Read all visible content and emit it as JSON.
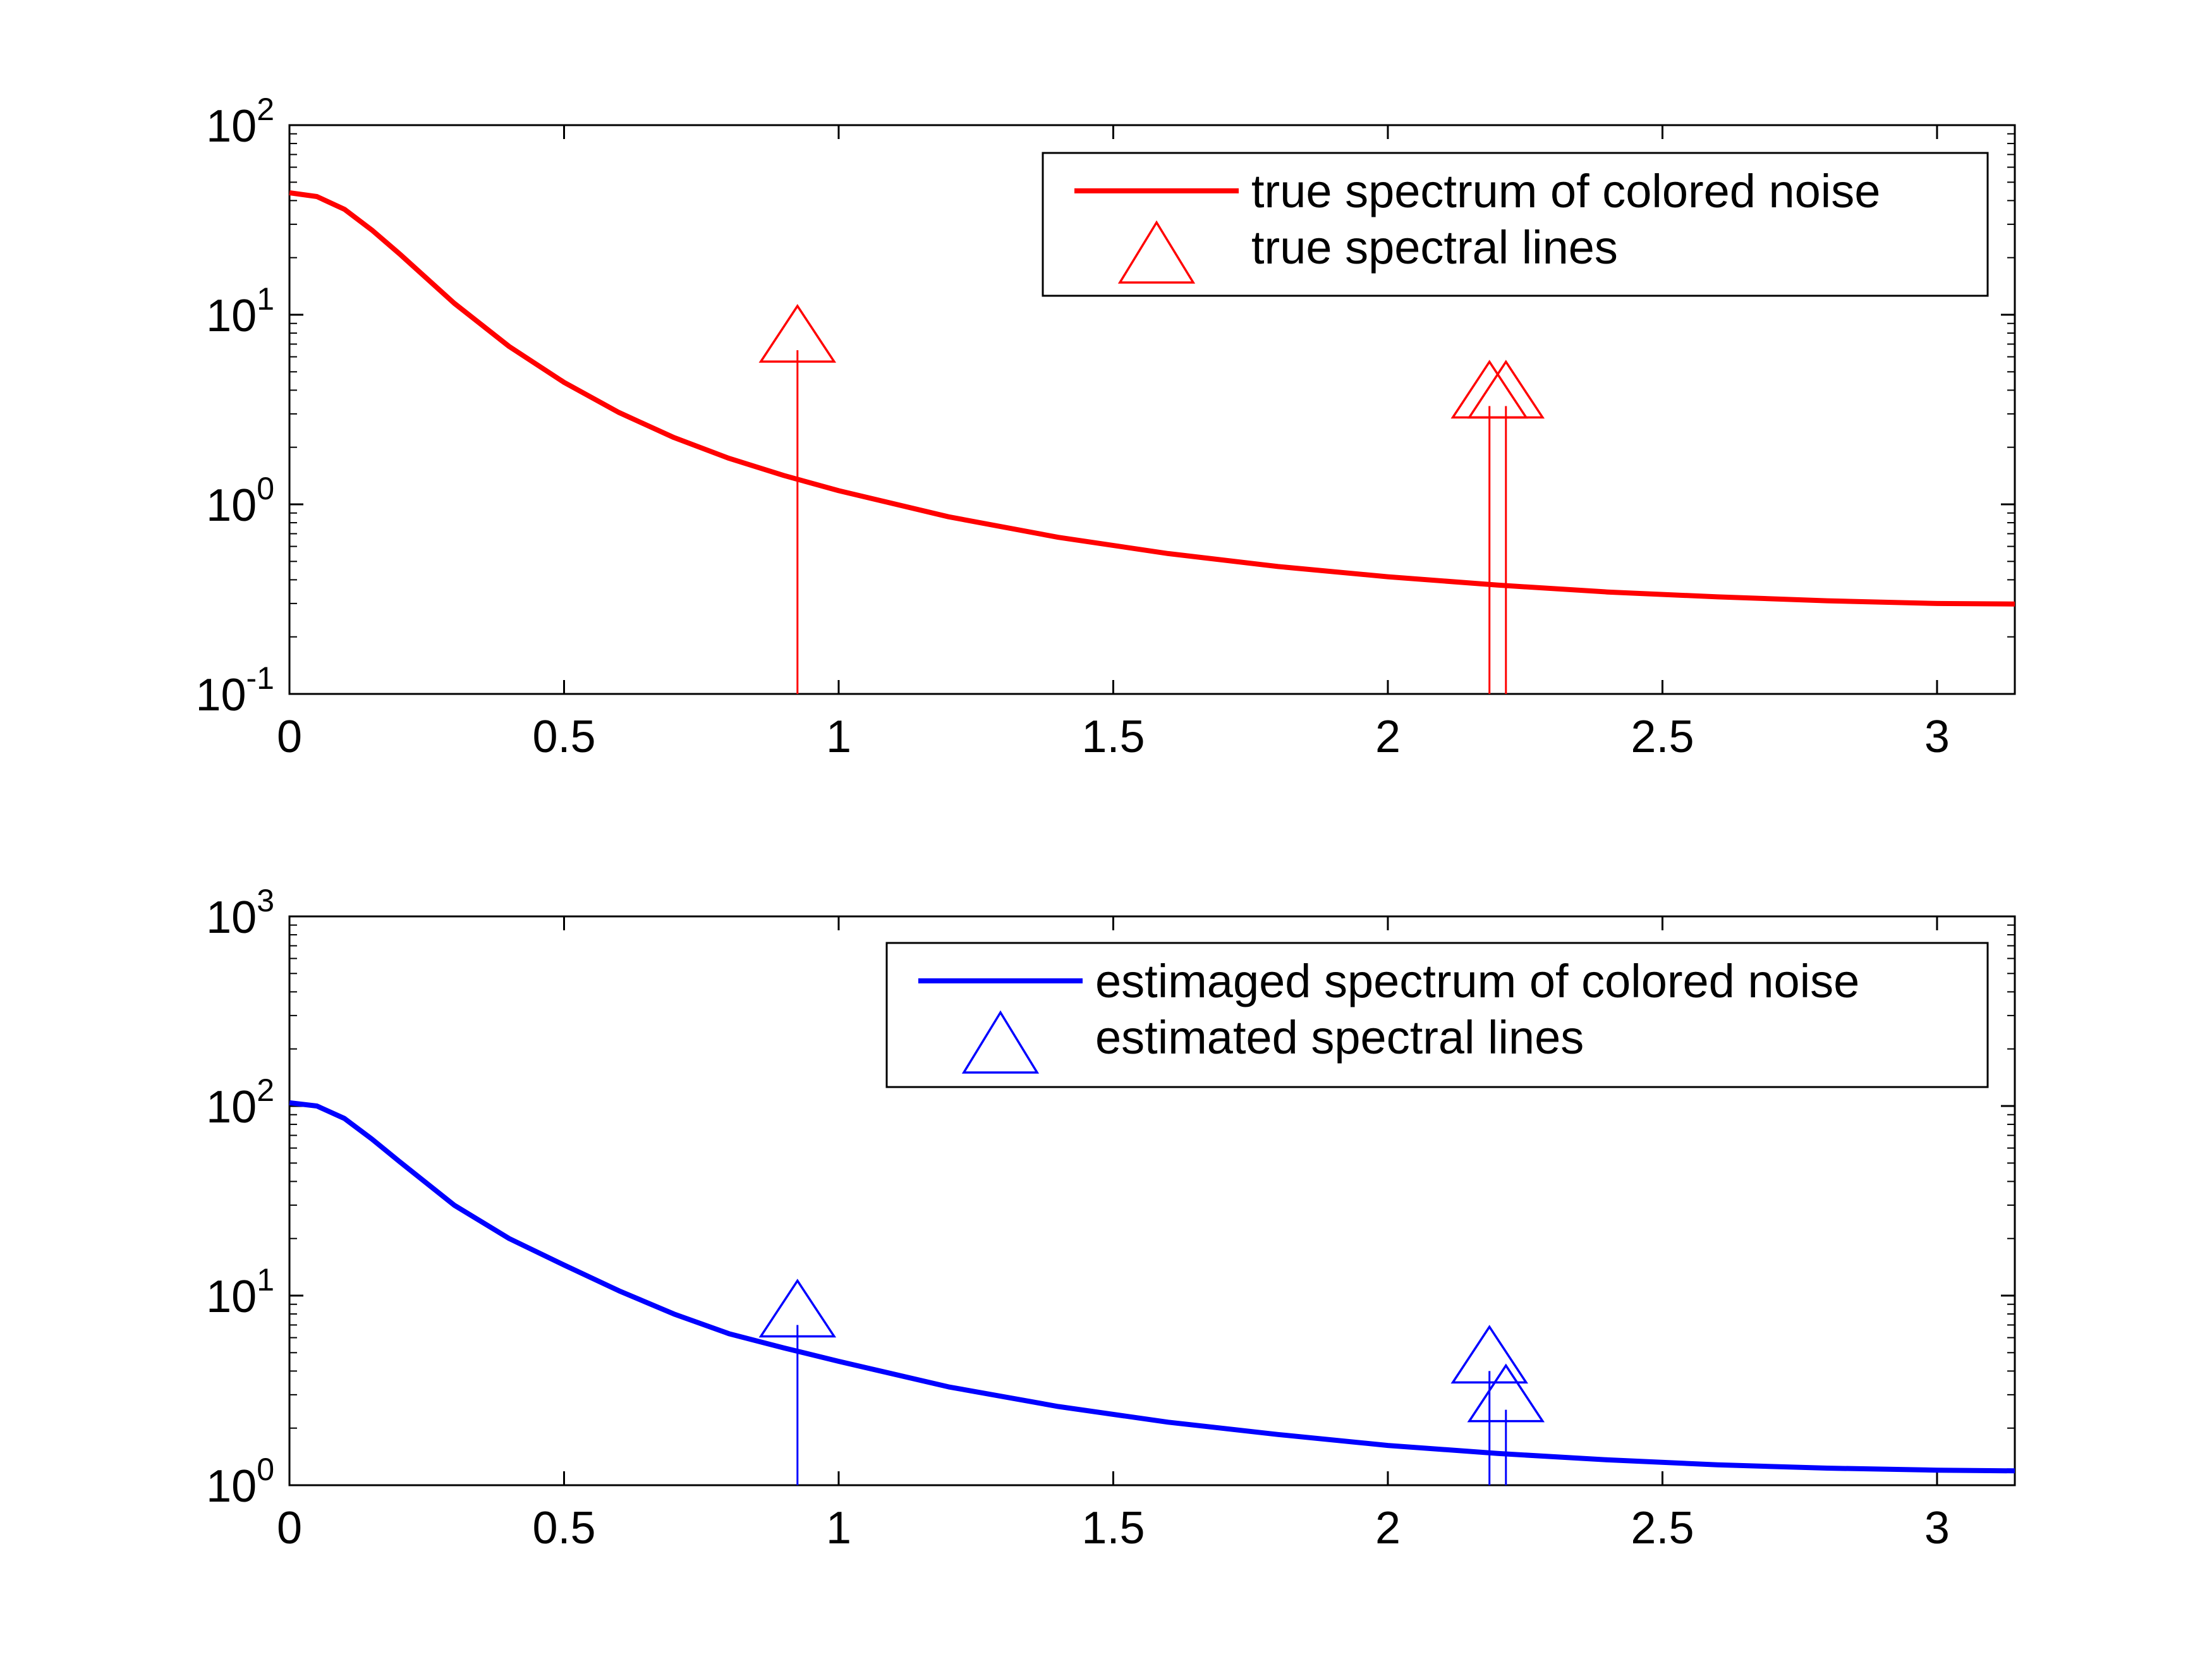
{
  "chart_data": [
    {
      "type": "line",
      "xlim": [
        0,
        3.1416
      ],
      "ylim": [
        0.1,
        100
      ],
      "yscale": "log",
      "grid": false,
      "legend_position": "top-right",
      "xticks": [
        {
          "value": 0,
          "label": "0"
        },
        {
          "value": 0.5,
          "label": "0.5"
        },
        {
          "value": 1,
          "label": "1"
        },
        {
          "value": 1.5,
          "label": "1.5"
        },
        {
          "value": 2,
          "label": "2"
        },
        {
          "value": 2.5,
          "label": "2.5"
        },
        {
          "value": 3,
          "label": "3"
        }
      ],
      "yticks": [
        {
          "value": 0.1,
          "base": "10",
          "exp": "-1"
        },
        {
          "value": 1,
          "base": "10",
          "exp": "0"
        },
        {
          "value": 10,
          "base": "10",
          "exp": "1"
        },
        {
          "value": 100,
          "base": "10",
          "exp": "2"
        }
      ],
      "series": [
        {
          "name": "true spectrum of colored noise",
          "kind": "line",
          "color": "#ff0000",
          "x": [
            0,
            0.05,
            0.1,
            0.15,
            0.2,
            0.3,
            0.4,
            0.5,
            0.6,
            0.7,
            0.8,
            0.9,
            1.0,
            1.2,
            1.4,
            1.6,
            1.8,
            2.0,
            2.2,
            2.4,
            2.6,
            2.8,
            3.0,
            3.1416
          ],
          "y": [
            44,
            42,
            36,
            28,
            21,
            11.5,
            6.8,
            4.4,
            3.05,
            2.25,
            1.75,
            1.42,
            1.18,
            0.86,
            0.67,
            0.55,
            0.47,
            0.415,
            0.375,
            0.345,
            0.325,
            0.31,
            0.3,
            0.298
          ]
        },
        {
          "name": "true spectral lines",
          "kind": "stem",
          "color": "#ff0000",
          "x": [
            0.925,
            2.185,
            2.215
          ],
          "y": [
            6.5,
            3.3,
            3.3
          ]
        }
      ]
    },
    {
      "type": "line",
      "xlim": [
        0,
        3.1416
      ],
      "ylim": [
        1,
        1000
      ],
      "yscale": "log",
      "grid": false,
      "legend_position": "top-right",
      "xticks": [
        {
          "value": 0,
          "label": "0"
        },
        {
          "value": 0.5,
          "label": "0.5"
        },
        {
          "value": 1,
          "label": "1"
        },
        {
          "value": 1.5,
          "label": "1.5"
        },
        {
          "value": 2,
          "label": "2"
        },
        {
          "value": 2.5,
          "label": "2.5"
        },
        {
          "value": 3,
          "label": "3"
        }
      ],
      "yticks": [
        {
          "value": 1,
          "base": "10",
          "exp": "0"
        },
        {
          "value": 10,
          "base": "10",
          "exp": "1"
        },
        {
          "value": 100,
          "base": "10",
          "exp": "2"
        },
        {
          "value": 1000,
          "base": "10",
          "exp": "3"
        }
      ],
      "series": [
        {
          "name": "estimaged spectrum of colored noise",
          "kind": "line",
          "color": "#0000ff",
          "x": [
            0,
            0.05,
            0.1,
            0.15,
            0.2,
            0.3,
            0.4,
            0.5,
            0.6,
            0.7,
            0.8,
            0.9,
            1.0,
            1.2,
            1.4,
            1.6,
            1.8,
            2.0,
            2.2,
            2.4,
            2.6,
            2.8,
            3.0,
            3.1416
          ],
          "y": [
            104,
            100,
            86,
            67,
            51,
            30,
            20,
            14.5,
            10.6,
            8.0,
            6.3,
            5.3,
            4.5,
            3.3,
            2.6,
            2.15,
            1.85,
            1.62,
            1.47,
            1.36,
            1.28,
            1.23,
            1.2,
            1.19
          ]
        },
        {
          "name": "estimated spectral lines",
          "kind": "stem",
          "color": "#0000ff",
          "x": [
            0.925,
            2.185,
            2.215
          ],
          "y": [
            7.0,
            4.0,
            2.5
          ]
        }
      ]
    }
  ]
}
